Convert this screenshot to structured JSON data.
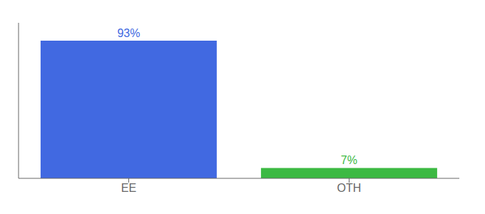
{
  "chart_data": {
    "type": "bar",
    "categories": [
      "EE",
      "OTH"
    ],
    "values": [
      93,
      7
    ],
    "colors": [
      "#4169e1",
      "#3cb943"
    ],
    "value_labels": [
      "93%",
      "7%"
    ],
    "data_labels": true,
    "ylim": [
      0,
      105
    ],
    "tick_labels": "x",
    "grid": false
  }
}
